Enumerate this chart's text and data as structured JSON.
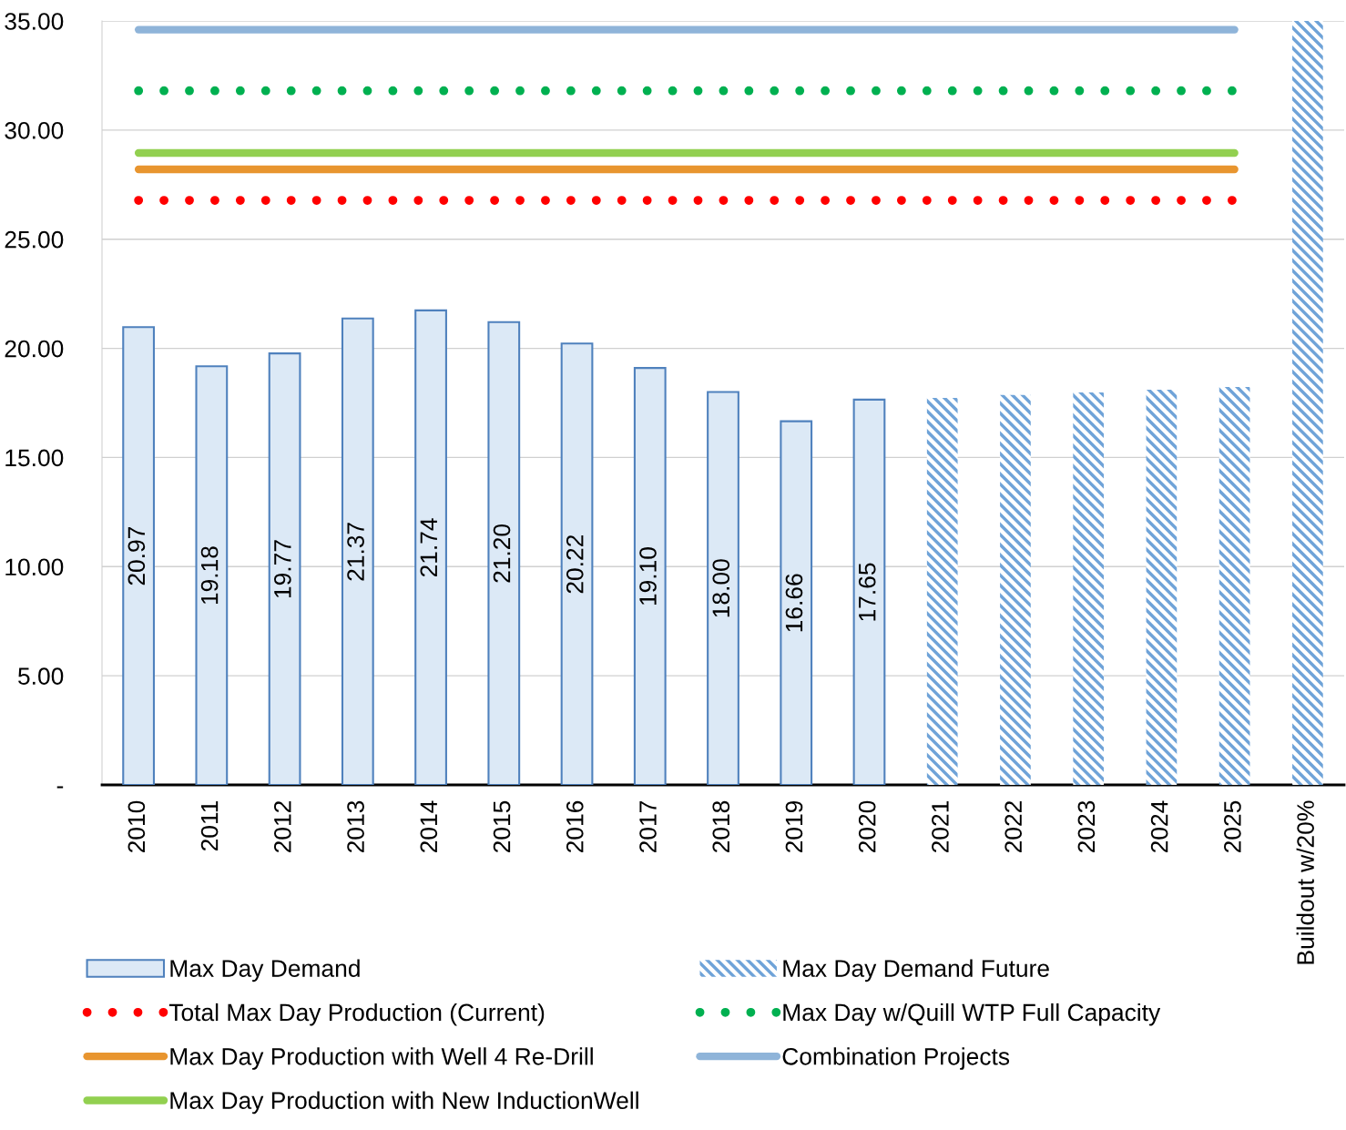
{
  "chart_data": {
    "type": "bar",
    "categories": [
      "2010",
      "2011",
      "2012",
      "2013",
      "2014",
      "2015",
      "2016",
      "2017",
      "2018",
      "2019",
      "2020",
      "2021",
      "2022",
      "2023",
      "2024",
      "2025",
      "Buildout w/20%"
    ],
    "ylim": [
      0,
      35
    ],
    "yticks": [
      {
        "value": 0,
        "label": "-"
      },
      {
        "value": 5,
        "label": "5.00"
      },
      {
        "value": 10,
        "label": "10.00"
      },
      {
        "value": 15,
        "label": "15.00"
      },
      {
        "value": 20,
        "label": "20.00"
      },
      {
        "value": 25,
        "label": "25.00"
      },
      {
        "value": 30,
        "label": "30.00"
      },
      {
        "value": 35,
        "label": "35.00"
      }
    ],
    "grid": "y",
    "legend": "bottom",
    "series": [
      {
        "name": "Max Day Demand",
        "color": "#4f81bd",
        "values": [
          20.97,
          19.18,
          19.77,
          21.37,
          21.74,
          21.2,
          20.22,
          19.1,
          18.0,
          16.66,
          17.65,
          null,
          null,
          null,
          null,
          null,
          null
        ],
        "value_labels": [
          "20.97",
          "19.18",
          "19.77",
          "21.37",
          "21.74",
          "21.20",
          "20.22",
          "19.10",
          "18.00",
          "16.66",
          "17.65",
          null,
          null,
          null,
          null,
          null,
          null
        ]
      },
      {
        "name": "Max Day Demand Future",
        "color": "#6fa3d8",
        "values": [
          null,
          null,
          null,
          null,
          null,
          null,
          null,
          null,
          null,
          null,
          null,
          17.73,
          17.86,
          17.98,
          18.11,
          18.23,
          35.0
        ]
      },
      {
        "name": "Total Max Day Production (Current)",
        "type": "line",
        "color": "#ff0000",
        "line_style": "dotted",
        "values": [
          26.78,
          26.78,
          26.78,
          26.78,
          26.78,
          26.78,
          26.78,
          26.78,
          26.78,
          26.78,
          26.78,
          26.78,
          26.78,
          26.78,
          26.78,
          26.78,
          null
        ]
      },
      {
        "name": "Max Day w/Quill WTP Full Capacity",
        "type": "line",
        "color": "#00b050",
        "line_style": "dotted",
        "values": [
          31.8,
          31.8,
          31.8,
          31.8,
          31.8,
          31.8,
          31.8,
          31.8,
          31.8,
          31.8,
          31.8,
          31.8,
          31.8,
          31.8,
          31.8,
          31.8,
          null
        ]
      },
      {
        "name": "Max Day Production with Well 4 Re-Drill",
        "type": "line",
        "color": "#e8952f",
        "line_style": "solid",
        "values": [
          28.2,
          28.2,
          28.2,
          28.2,
          28.2,
          28.2,
          28.2,
          28.2,
          28.2,
          28.2,
          28.2,
          28.2,
          28.2,
          28.2,
          28.2,
          28.2,
          null
        ]
      },
      {
        "name": "Combination Projects",
        "type": "line",
        "color": "#8fb4d9",
        "line_style": "solid",
        "values": [
          34.6,
          34.6,
          34.6,
          34.6,
          34.6,
          34.6,
          34.6,
          34.6,
          34.6,
          34.6,
          34.6,
          34.6,
          34.6,
          34.6,
          34.6,
          34.6,
          null
        ]
      },
      {
        "name": "Max Day Production with New InductionWell",
        "type": "line",
        "color": "#92d050",
        "line_style": "solid",
        "values": [
          28.95,
          28.95,
          28.95,
          28.95,
          28.95,
          28.95,
          28.95,
          28.95,
          28.95,
          28.95,
          28.95,
          28.95,
          28.95,
          28.95,
          28.95,
          28.95,
          null
        ]
      }
    ]
  }
}
